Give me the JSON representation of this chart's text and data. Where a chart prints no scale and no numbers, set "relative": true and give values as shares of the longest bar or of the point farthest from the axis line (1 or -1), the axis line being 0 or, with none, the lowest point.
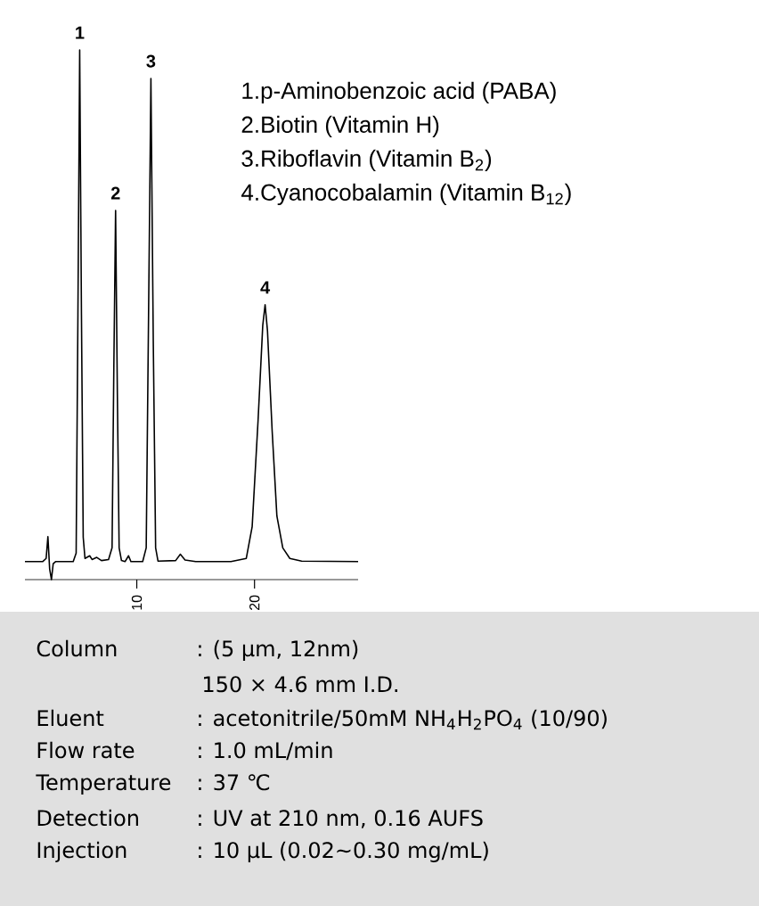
{
  "chart_data": {
    "type": "line",
    "relative": true,
    "color": "#000000",
    "x": [
      0.5,
      2.0,
      2.3,
      2.45,
      2.6,
      2.75,
      2.9,
      3.1,
      4.6,
      4.85,
      5.0,
      5.15,
      5.3,
      5.45,
      5.6,
      6.0,
      6.2,
      6.6,
      7.0,
      7.6,
      7.9,
      8.05,
      8.2,
      8.35,
      8.5,
      8.7,
      9.0,
      9.3,
      9.5,
      10.5,
      10.8,
      11.0,
      11.2,
      11.4,
      11.6,
      11.8,
      13.3,
      13.7,
      14.1,
      15.0,
      18.0,
      19.3,
      19.8,
      20.3,
      20.7,
      20.9,
      21.1,
      21.5,
      21.9,
      22.4,
      23.0,
      24.0,
      28.8
    ],
    "values": [
      0.034,
      0.034,
      0.04,
      0.081,
      0.02,
      0.0,
      0.03,
      0.034,
      0.034,
      0.05,
      0.5,
      1.0,
      0.5,
      0.08,
      0.04,
      0.045,
      0.038,
      0.042,
      0.036,
      0.038,
      0.06,
      0.4,
      0.697,
      0.35,
      0.06,
      0.036,
      0.034,
      0.045,
      0.034,
      0.034,
      0.06,
      0.5,
      0.946,
      0.45,
      0.06,
      0.035,
      0.036,
      0.048,
      0.037,
      0.034,
      0.034,
      0.04,
      0.1,
      0.3,
      0.48,
      0.519,
      0.47,
      0.28,
      0.12,
      0.06,
      0.04,
      0.035,
      0.034
    ],
    "xlim": [
      0.5,
      28.8
    ],
    "xticks": [
      {
        "value": 10,
        "label": "10"
      },
      {
        "value": 20,
        "label": "20"
      }
    ],
    "grid": false,
    "annotations": [
      {
        "text": "1",
        "x": 5.15,
        "y": 1.0
      },
      {
        "text": "2",
        "x": 8.2,
        "y": 0.697
      },
      {
        "text": "3",
        "x": 11.2,
        "y": 0.946
      },
      {
        "text": "4",
        "x": 20.9,
        "y": 0.519
      },
      "1.p-Aminobenzoic acid (PABA)",
      "2.Biotin (Vitamin H)",
      "3.Riboflavin (Vitamin B$_{2}$)",
      "4.Cyanocobalamin (Vitamin B$_{12}$)",
      "Column",
      ": (5 μm, 12nm)",
      "150 × 4.6 mm I.D.",
      "Eluent",
      ": acetonitrile/50mM NH$_{4}$H$_{2}$PO$_{4}$ (10/90)",
      "Flow rate",
      ": 1.0 mL/min",
      "Temperature",
      ": 37 ℃",
      "Detection",
      ": UV at 210 nm, 0.16 AUFS",
      "Injection",
      ": 10 μL (0.02∼0.30 mg/mL)"
    ]
  }
}
